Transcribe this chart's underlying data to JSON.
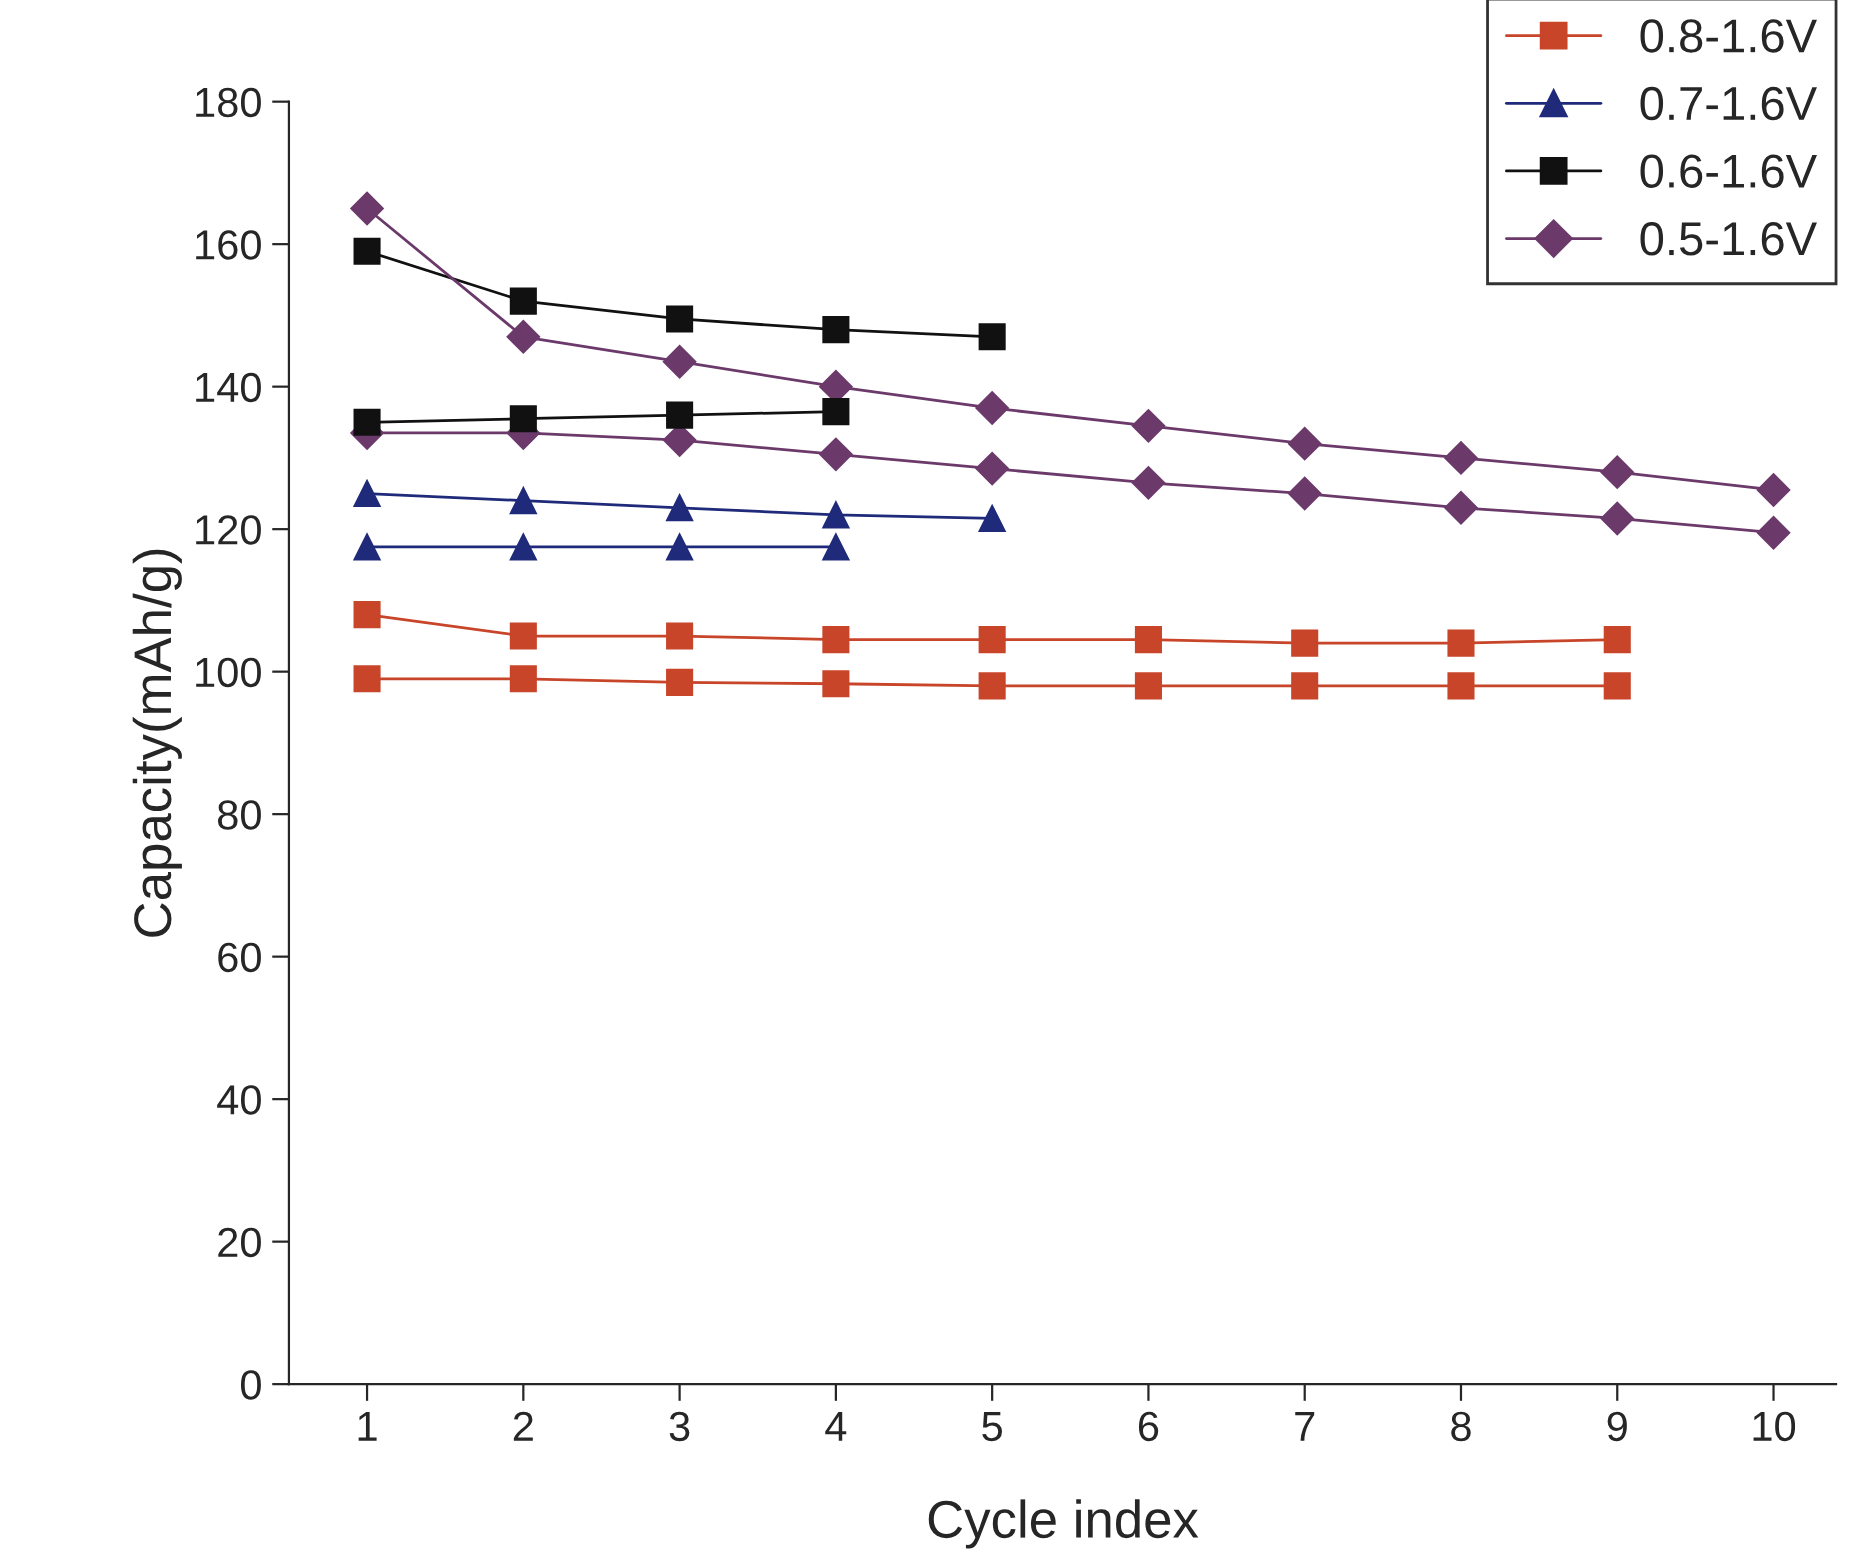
{
  "chart_data": {
    "type": "line",
    "xlabel": "Cycle index",
    "ylabel": "Capacity(mAh/g)",
    "xlim": [
      0.5,
      10.4
    ],
    "xticks": [
      1,
      2,
      3,
      4,
      5,
      6,
      7,
      8,
      9,
      10
    ],
    "ylim": [
      0,
      180
    ],
    "yticks": [
      0,
      20,
      40,
      60,
      80,
      100,
      120,
      140,
      160,
      180
    ],
    "grid": false,
    "legend": "top right",
    "series": [
      {
        "name": "0.8-1.6V",
        "color": "#c8452a",
        "marker": "square",
        "x": [
          1,
          2,
          3,
          4,
          5,
          6,
          7,
          8,
          9
        ],
        "values": [
          108,
          105,
          105,
          104.5,
          104.5,
          104.5,
          104,
          104,
          104.5
        ]
      },
      {
        "name": "0.7-1.6V",
        "color": "#1f2a7a",
        "marker": "triangle",
        "x": [
          1,
          2,
          3,
          4,
          5
        ],
        "values": [
          125,
          124,
          123,
          122,
          121.5
        ]
      },
      {
        "name": "0.6-1.6V",
        "color": "#111111",
        "marker": "square",
        "x": [
          1,
          2,
          3,
          4,
          5
        ],
        "values": [
          159,
          152,
          149.5,
          148,
          147
        ]
      },
      {
        "name": "0.5-1.6V",
        "color": "#6b3a6b",
        "marker": "diamond",
        "x": [
          1,
          2,
          3,
          4,
          5,
          6,
          7,
          8,
          9,
          10
        ],
        "values": [
          165,
          147,
          143.5,
          140,
          137,
          134.5,
          132,
          130,
          128,
          125.5
        ]
      },
      {
        "color": "#c8452a",
        "marker": "square",
        "x": [
          1,
          2,
          3,
          4,
          5,
          6,
          7,
          8,
          9
        ],
        "values": [
          99,
          99,
          98.5,
          98.3,
          98,
          98,
          98,
          98,
          98
        ]
      },
      {
        "color": "#1f2a7a",
        "marker": "triangle",
        "x": [
          1,
          2,
          3,
          4
        ],
        "values": [
          117.5,
          117.5,
          117.5,
          117.5
        ]
      },
      {
        "color": "#6b3a6b",
        "marker": "diamond",
        "x": [
          1,
          2,
          3,
          4,
          5,
          6,
          7,
          8,
          9,
          10
        ],
        "values": [
          133.5,
          133.5,
          132.5,
          130.5,
          128.5,
          126.5,
          125,
          123,
          121.5,
          119.5
        ]
      },
      {
        "color": "#111111",
        "marker": "square",
        "x": [
          1,
          2,
          3,
          4
        ],
        "values": [
          135,
          135.5,
          136,
          136.5
        ]
      }
    ]
  }
}
